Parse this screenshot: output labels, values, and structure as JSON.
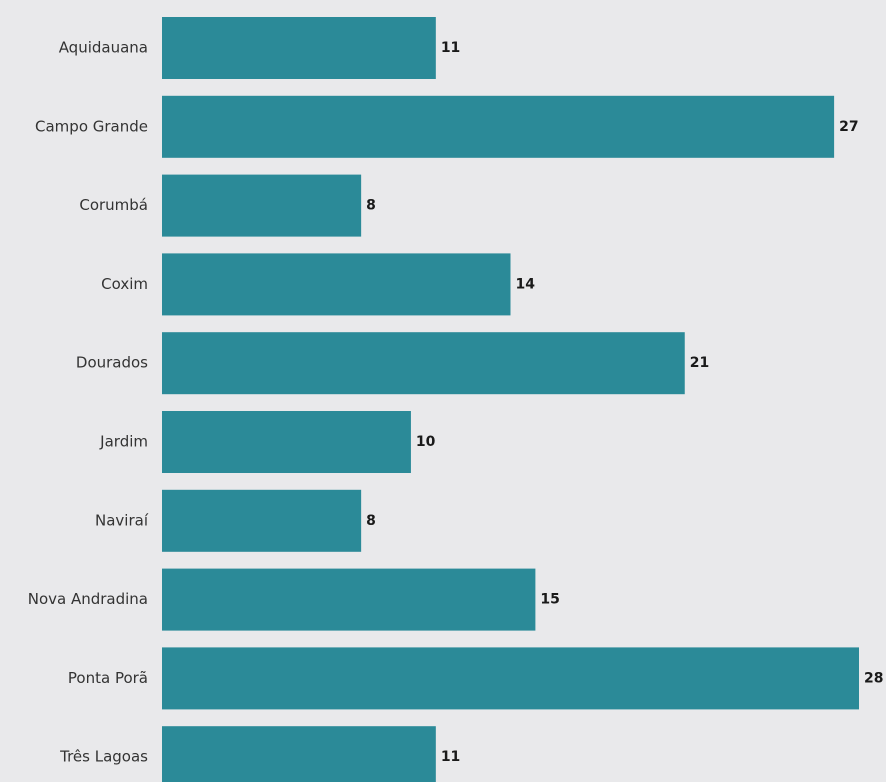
{
  "chart_data": {
    "type": "bar",
    "orientation": "horizontal",
    "categories": [
      "Aquidauana",
      "Campo Grande",
      "Corumbá",
      "Coxim",
      "Dourados",
      "Jardim",
      "Naviraí",
      "Nova Andradina",
      "Ponta Porã",
      "Três Lagoas"
    ],
    "values": [
      11,
      27,
      8,
      14,
      21,
      10,
      8,
      15,
      28,
      11
    ],
    "data_labels": [
      "11",
      "27",
      "8",
      "14",
      "21",
      "10",
      "8",
      "15",
      "28",
      "11"
    ],
    "title": "",
    "xlabel": "",
    "ylabel": "",
    "xlim": [
      0,
      28
    ],
    "grid": false,
    "legend": "none",
    "bar_color": "#2b8a98",
    "background_color": "#e9e9eb"
  }
}
